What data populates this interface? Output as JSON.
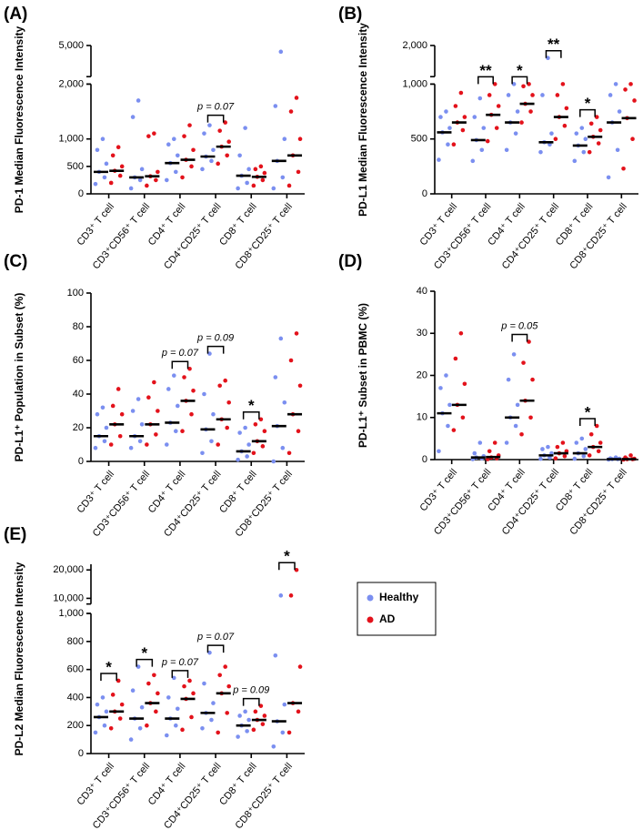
{
  "groups": [
    {
      "name": "Healthy",
      "color": "#7b8ff0"
    },
    {
      "name": "AD",
      "color": "#e3121b"
    }
  ],
  "chart_data": [
    {
      "type": "strip",
      "panel_label": "(A)",
      "y_label": "PD-1 Median Fluorescence Intensity",
      "categories": [
        "CD3⁺ T cell",
        "CD3⁺CD56⁺ T cell",
        "CD4⁺ T cell",
        "CD4⁺CD25⁺ T cell",
        "CD8⁺ T cell",
        "CD8⁺CD25⁺ T cell"
      ],
      "y_segments": [
        [
          0,
          2000
        ],
        [
          4000,
          5000
        ]
      ],
      "yticks": [
        0,
        500,
        {
          "value": 1000,
          "label": "1,000"
        },
        {
          "value": 2000,
          "label": "2,000"
        },
        {
          "value": 5000,
          "label": "5,000"
        }
      ],
      "series": [
        {
          "values": [
            [
              180,
              300,
              400,
              550,
              800,
              1000
            ],
            [
              100,
              250,
              300,
              450,
              1400,
              1700
            ],
            [
              250,
              400,
              560,
              700,
              900,
              1000
            ],
            [
              450,
              600,
              680,
              800,
              1100,
              1250
            ],
            [
              100,
              200,
              330,
              450,
              700,
              1200
            ],
            [
              100,
              300,
              600,
              1000,
              1600,
              4800
            ]
          ],
          "medians": [
            400,
            300,
            560,
            680,
            330,
            600
          ]
        },
        {
          "values": [
            [
              200,
              330,
              420,
              500,
              700,
              850
            ],
            [
              150,
              250,
              320,
              400,
              1050,
              1100
            ],
            [
              300,
              500,
              620,
              800,
              1050,
              1250
            ],
            [
              550,
              700,
              860,
              950,
              1150,
              1300
            ],
            [
              150,
              250,
              310,
              380,
              450,
              500
            ],
            [
              150,
              400,
              700,
              1000,
              1500,
              1750
            ]
          ],
          "medians": [
            420,
            320,
            620,
            860,
            310,
            700
          ]
        }
      ],
      "annotations": [
        {
          "category": 3,
          "text": "p = 0.07"
        }
      ]
    },
    {
      "type": "strip",
      "panel_label": "(B)",
      "y_label": "PD-L1 Median Fluorescence Intensity",
      "categories": [
        "CD3⁺ T cell",
        "CD3⁺CD56⁺ T cell",
        "CD4⁺ T cell",
        "CD4⁺CD25⁺ T cell",
        "CD8⁺ T cell",
        "CD8⁺CD25⁺ T cell"
      ],
      "y_segments": [
        [
          0,
          1000
        ],
        [
          1500,
          2000
        ]
      ],
      "yticks": [
        0,
        500,
        {
          "value": 1000,
          "label": "1,000"
        },
        {
          "value": 2000,
          "label": "2,000"
        }
      ],
      "series": [
        {
          "values": [
            [
              310,
              450,
              560,
              600,
              700,
              750
            ],
            [
              300,
              400,
              490,
              600,
              700,
              870
            ],
            [
              400,
              550,
              650,
              750,
              900,
              1000
            ],
            [
              380,
              450,
              470,
              550,
              900,
              1800
            ],
            [
              300,
              380,
              440,
              500,
              550,
              600
            ],
            [
              150,
              400,
              650,
              750,
              900,
              1000
            ]
          ],
          "medians": [
            560,
            490,
            650,
            470,
            440,
            650
          ]
        },
        {
          "values": [
            [
              450,
              580,
              650,
              700,
              800,
              920
            ],
            [
              480,
              600,
              720,
              800,
              900,
              1000
            ],
            [
              650,
              750,
              820,
              900,
              980,
              1000
            ],
            [
              500,
              620,
              700,
              780,
              900,
              1000
            ],
            [
              380,
              460,
              520,
              580,
              640,
              700
            ],
            [
              230,
              500,
              690,
              850,
              950,
              1000
            ]
          ],
          "medians": [
            650,
            720,
            820,
            700,
            520,
            690
          ]
        }
      ],
      "annotations": [
        {
          "category": 1,
          "text": "**"
        },
        {
          "category": 2,
          "text": "*"
        },
        {
          "category": 3,
          "text": "**"
        },
        {
          "category": 4,
          "text": "*"
        }
      ]
    },
    {
      "type": "strip",
      "panel_label": "(C)",
      "y_label": "PD-L1⁺ Population in Subset (%)",
      "categories": [
        "CD3⁺ T cell",
        "CD3⁺CD56⁺ T cell",
        "CD4⁺ T cell",
        "CD4⁺CD25⁺ T cell",
        "CD8⁺ T cell",
        "CD8⁺CD25⁺ T cell"
      ],
      "y_segments": [
        [
          0,
          100
        ]
      ],
      "yticks": [
        0,
        20,
        40,
        60,
        80,
        100
      ],
      "series": [
        {
          "values": [
            [
              8,
              12,
              15,
              20,
              28,
              32
            ],
            [
              8,
              12,
              15,
              22,
              30,
              37
            ],
            [
              10,
              18,
              23,
              33,
              43,
              51
            ],
            [
              5,
              12,
              19,
              28,
              40,
              64
            ],
            [
              1,
              3,
              6,
              10,
              17,
              20
            ],
            [
              0,
              8,
              21,
              35,
              50,
              73
            ]
          ],
          "medians": [
            15,
            15,
            23,
            19,
            6,
            21
          ]
        },
        {
          "values": [
            [
              10,
              15,
              22,
              28,
              33,
              43
            ],
            [
              10,
              16,
              22,
              30,
              38,
              47
            ],
            [
              18,
              28,
              36,
              42,
              50,
              55
            ],
            [
              10,
              20,
              25,
              35,
              45,
              48
            ],
            [
              5,
              9,
              12,
              18,
              22,
              25
            ],
            [
              5,
              18,
              28,
              45,
              60,
              76
            ]
          ],
          "medians": [
            22,
            22,
            36,
            25,
            12,
            28
          ]
        }
      ],
      "annotations": [
        {
          "category": 2,
          "text": "p = 0.07"
        },
        {
          "category": 3,
          "text": "p = 0.09"
        },
        {
          "category": 4,
          "text": "*"
        }
      ]
    },
    {
      "type": "strip",
      "panel_label": "(D)",
      "y_label": "PD-L1⁺ Subset in PBMC (%)",
      "categories": [
        "CD3⁺ T cell",
        "CD3⁺CD56⁺ T cell",
        "CD4⁺ T cell",
        "CD4⁺CD25⁺ T cell",
        "CD8⁺ T cell",
        "CD8⁺CD25⁺ T cell"
      ],
      "y_segments": [
        [
          0,
          40
        ]
      ],
      "yticks": [
        0,
        10,
        20,
        30,
        40
      ],
      "series": [
        {
          "values": [
            [
              2,
              8,
              11,
              13,
              17,
              20
            ],
            [
              0.1,
              0.3,
              0.5,
              0.8,
              1.5,
              4
            ],
            [
              4,
              8,
              10,
              13,
              19,
              25
            ],
            [
              0.2,
              0.5,
              1,
              1.5,
              2.5,
              3
            ],
            [
              0.2,
              0.8,
              1.5,
              2.5,
              4,
              5
            ],
            [
              0,
              0.1,
              0.1,
              0.2,
              0.3,
              0.5
            ]
          ],
          "medians": [
            11,
            0.5,
            10,
            1,
            1.5,
            0.1
          ]
        },
        {
          "values": [
            [
              7,
              10,
              13,
              18,
              24,
              30
            ],
            [
              0.1,
              0.3,
              0.5,
              1,
              2,
              4
            ],
            [
              6,
              10,
              14,
              19,
              23,
              28
            ],
            [
              0.3,
              0.8,
              1.5,
              2,
              3,
              4
            ],
            [
              1,
              2,
              3,
              4,
              6,
              8
            ],
            [
              0,
              0.1,
              0.1,
              0.2,
              0.5,
              1
            ]
          ],
          "medians": [
            13,
            0.6,
            14,
            1.5,
            3,
            0.1
          ]
        }
      ],
      "annotations": [
        {
          "category": 2,
          "text": "p = 0.05"
        },
        {
          "category": 4,
          "text": "*"
        }
      ]
    },
    {
      "type": "strip",
      "panel_label": "(E)",
      "y_label": "PD-L2 Median Fluorescence Intensity",
      "categories": [
        "CD3⁺ T cell",
        "CD3⁺CD56⁺ T cell",
        "CD4⁺ T cell",
        "CD4⁺CD25⁺ T cell",
        "CD8⁺ T cell",
        "CD8⁺CD25⁺ T cell"
      ],
      "y_segments": [
        [
          0,
          1000
        ],
        [
          8000,
          22000
        ]
      ],
      "yticks": [
        0,
        200,
        400,
        600,
        800,
        {
          "value": 1000,
          "label": "1,000"
        },
        {
          "value": 10000,
          "label": "10,000"
        },
        {
          "value": 20000,
          "label": "20,000"
        }
      ],
      "series": [
        {
          "values": [
            [
              150,
              200,
              260,
              300,
              350,
              400
            ],
            [
              100,
              180,
              250,
              330,
              450,
              620
            ],
            [
              130,
              200,
              250,
              320,
              400,
              540
            ],
            [
              180,
              240,
              290,
              360,
              500,
              720
            ],
            [
              120,
              160,
              200,
              240,
              270,
              300
            ],
            [
              50,
              150,
              230,
              350,
              700,
              11000
            ]
          ],
          "medians": [
            260,
            250,
            250,
            290,
            200,
            230
          ]
        },
        {
          "values": [
            [
              180,
              250,
              300,
              350,
              420,
              520
            ],
            [
              200,
              300,
              360,
              430,
              500,
              560
            ],
            [
              170,
              260,
              390,
              430,
              480,
              520
            ],
            [
              150,
              290,
              430,
              480,
              560,
              620
            ],
            [
              170,
              210,
              240,
              270,
              300,
              340
            ],
            [
              150,
              300,
              360,
              620,
              11000,
              20000
            ]
          ],
          "medians": [
            300,
            360,
            390,
            430,
            240,
            360
          ]
        }
      ],
      "annotations": [
        {
          "category": 0,
          "text": "*"
        },
        {
          "category": 1,
          "text": "*"
        },
        {
          "category": 2,
          "text": "p = 0.07"
        },
        {
          "category": 3,
          "text": "p = 0.07"
        },
        {
          "category": 4,
          "text": "p = 0.09"
        },
        {
          "category": 5,
          "text": "*"
        }
      ]
    }
  ]
}
